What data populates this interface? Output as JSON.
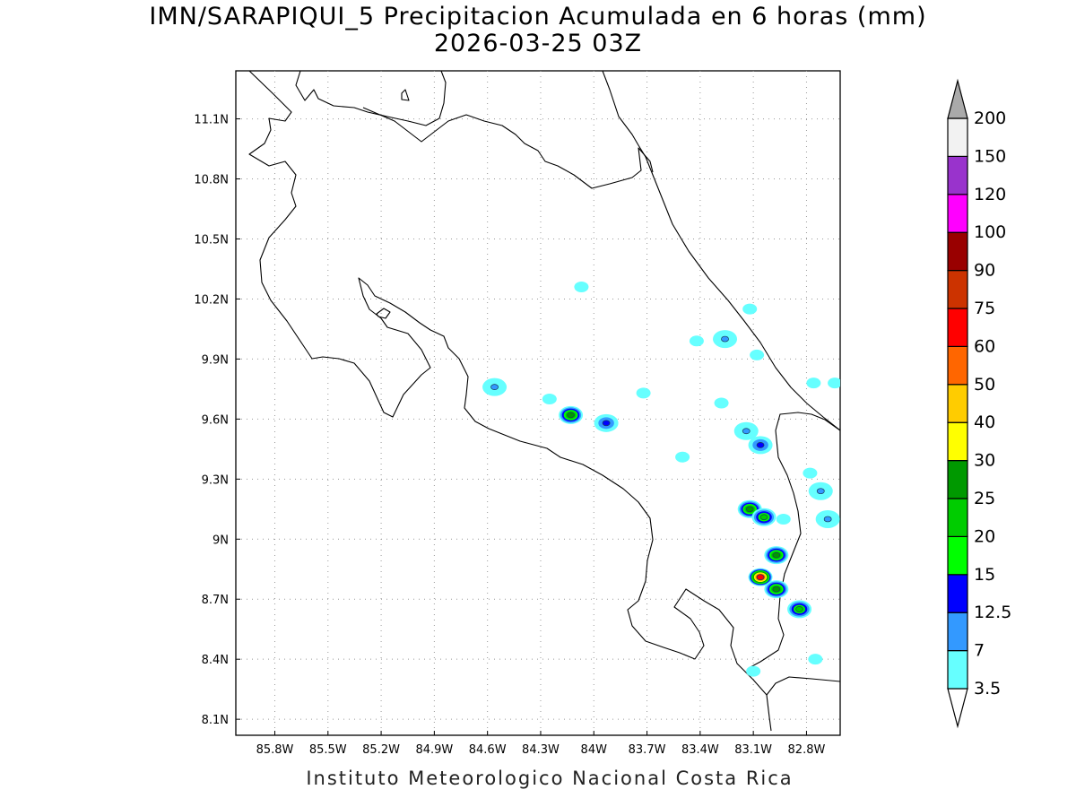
{
  "title": "IMN/SARAPIQUI_5 Precipitacion Acumulada en 6 horas (mm)",
  "subtitle": "2026-03-25 03Z",
  "footer": "Instituto Meteorologico Nacional Costa Rica",
  "map": {
    "lon_range": [
      -86.02,
      -82.61
    ],
    "lat_range": [
      8.02,
      11.34
    ],
    "lon_ticks": [
      {
        "value": -85.8,
        "label": "85.8W"
      },
      {
        "value": -85.5,
        "label": "85.5W"
      },
      {
        "value": -85.2,
        "label": "85.2W"
      },
      {
        "value": -84.9,
        "label": "84.9W"
      },
      {
        "value": -84.6,
        "label": "84.6W"
      },
      {
        "value": -84.3,
        "label": "84.3W"
      },
      {
        "value": -84.0,
        "label": "84W"
      },
      {
        "value": -83.7,
        "label": "83.7W"
      },
      {
        "value": -83.4,
        "label": "83.4W"
      },
      {
        "value": -83.1,
        "label": "83.1W"
      },
      {
        "value": -82.8,
        "label": "82.8W"
      }
    ],
    "lat_ticks": [
      {
        "value": 11.1,
        "label": "11.1N"
      },
      {
        "value": 10.8,
        "label": "10.8N"
      },
      {
        "value": 10.5,
        "label": "10.5N"
      },
      {
        "value": 10.2,
        "label": "10.2N"
      },
      {
        "value": 9.9,
        "label": "9.9N"
      },
      {
        "value": 9.6,
        "label": "9.6N"
      },
      {
        "value": 9.3,
        "label": "9.3N"
      },
      {
        "value": 9.0,
        "label": "9N"
      },
      {
        "value": 8.7,
        "label": "8.7N"
      },
      {
        "value": 8.4,
        "label": "8.4N"
      },
      {
        "value": 8.1,
        "label": "8.1N"
      }
    ],
    "grid": "dotted",
    "precip_cells": [
      {
        "lon": -84.07,
        "lat": 10.26,
        "mm": 3.5
      },
      {
        "lon": -83.42,
        "lat": 9.99,
        "mm": 3.5
      },
      {
        "lon": -83.26,
        "lat": 10.0,
        "mm": 7
      },
      {
        "lon": -83.12,
        "lat": 10.15,
        "mm": 3.5
      },
      {
        "lon": -84.56,
        "lat": 9.76,
        "mm": 7
      },
      {
        "lon": -84.25,
        "lat": 9.7,
        "mm": 3.5
      },
      {
        "lon": -84.13,
        "lat": 9.62,
        "mm": 25
      },
      {
        "lon": -83.93,
        "lat": 9.58,
        "mm": 12.5
      },
      {
        "lon": -83.72,
        "lat": 9.73,
        "mm": 3.5
      },
      {
        "lon": -83.28,
        "lat": 9.68,
        "mm": 3.5
      },
      {
        "lon": -83.14,
        "lat": 9.54,
        "mm": 7
      },
      {
        "lon": -83.06,
        "lat": 9.47,
        "mm": 12.5
      },
      {
        "lon": -83.5,
        "lat": 9.41,
        "mm": 3.5
      },
      {
        "lon": -83.12,
        "lat": 9.15,
        "mm": 25
      },
      {
        "lon": -83.04,
        "lat": 9.11,
        "mm": 20
      },
      {
        "lon": -82.97,
        "lat": 8.92,
        "mm": 25
      },
      {
        "lon": -83.06,
        "lat": 8.81,
        "mm": 60
      },
      {
        "lon": -82.97,
        "lat": 8.75,
        "mm": 25
      },
      {
        "lon": -82.84,
        "lat": 8.65,
        "mm": 20
      },
      {
        "lon": -83.1,
        "lat": 8.34,
        "mm": 3.5
      },
      {
        "lon": -82.76,
        "lat": 9.78,
        "mm": 3.5
      },
      {
        "lon": -82.72,
        "lat": 9.24,
        "mm": 7
      },
      {
        "lon": -82.68,
        "lat": 9.1,
        "mm": 7
      },
      {
        "lon": -82.93,
        "lat": 9.1,
        "mm": 3.5
      },
      {
        "lon": -82.78,
        "lat": 9.33,
        "mm": 3.5
      },
      {
        "lon": -82.75,
        "lat": 8.4,
        "mm": 3.5
      },
      {
        "lon": -82.64,
        "lat": 9.78,
        "mm": 3.5
      },
      {
        "lon": -83.08,
        "lat": 9.92,
        "mm": 3.5
      }
    ]
  },
  "colorbar": {
    "levels": [
      "3.5",
      "7",
      "12.5",
      "15",
      "20",
      "25",
      "30",
      "40",
      "50",
      "60",
      "75",
      "90",
      "100",
      "120",
      "150",
      "200"
    ],
    "colors": [
      "#66ffff",
      "#3399ff",
      "#0000ff",
      "#00ff00",
      "#00cc00",
      "#009900",
      "#ffff00",
      "#ffcc00",
      "#ff6600",
      "#ff0000",
      "#cc3300",
      "#990000",
      "#ff00ff",
      "#9933cc",
      "#f2f2f2",
      "#aaaaaa"
    ],
    "under_color": "#ffffff",
    "over_color": "#aaaaaa"
  }
}
